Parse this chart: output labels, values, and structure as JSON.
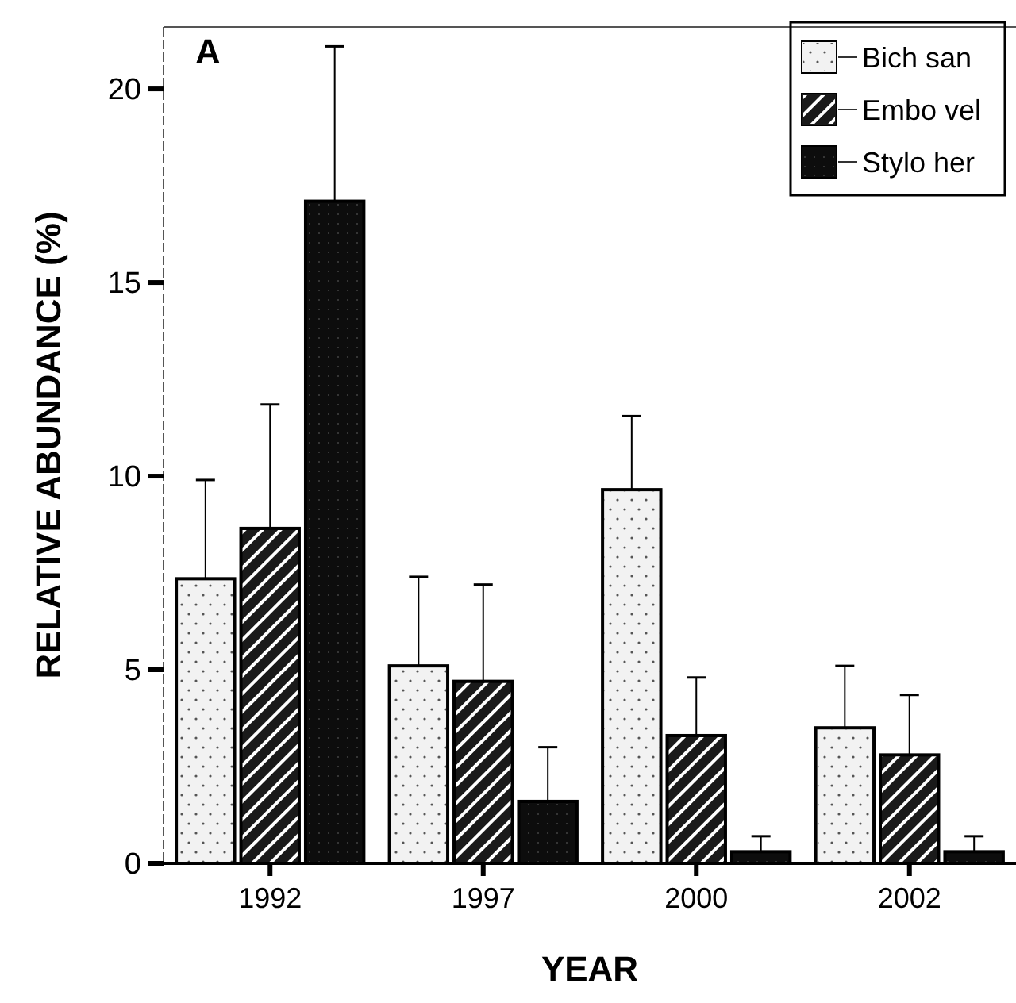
{
  "chart_data": {
    "type": "bar",
    "xlabel": "YEAR",
    "ylabel": "RELATIVE ABUNDANCE (%)",
    "annotations": [
      "A"
    ],
    "categories": [
      "1992",
      "1997",
      "2000",
      "2002"
    ],
    "series": [
      {
        "name": "Bich san",
        "color": "#f2f2f2",
        "values": [
          7.35,
          5.1,
          9.65,
          3.5
        ],
        "errors": [
          [
            7.35,
            9.9
          ],
          [
            5.1,
            7.4
          ],
          [
            9.65,
            11.55
          ],
          [
            3.5,
            5.1
          ]
        ]
      },
      {
        "name": "Embo vel",
        "color": "#1a1a1a",
        "values": [
          8.65,
          4.7,
          3.3,
          2.8
        ],
        "errors": [
          [
            8.65,
            11.85
          ],
          [
            4.7,
            7.2
          ],
          [
            3.3,
            4.8
          ],
          [
            2.8,
            4.35
          ]
        ]
      },
      {
        "name": "Stylo her",
        "color": "#0d0d0d",
        "values": [
          17.1,
          1.6,
          0.3,
          0.3
        ],
        "errors": [
          [
            17.1,
            21.1
          ],
          [
            1.6,
            3.0
          ],
          [
            0.3,
            0.7
          ],
          [
            0.3,
            0.7
          ]
        ]
      }
    ],
    "ylim": [
      0,
      21.6
    ],
    "yticks": [
      0,
      5,
      10,
      15,
      20
    ],
    "legend": "top right"
  }
}
